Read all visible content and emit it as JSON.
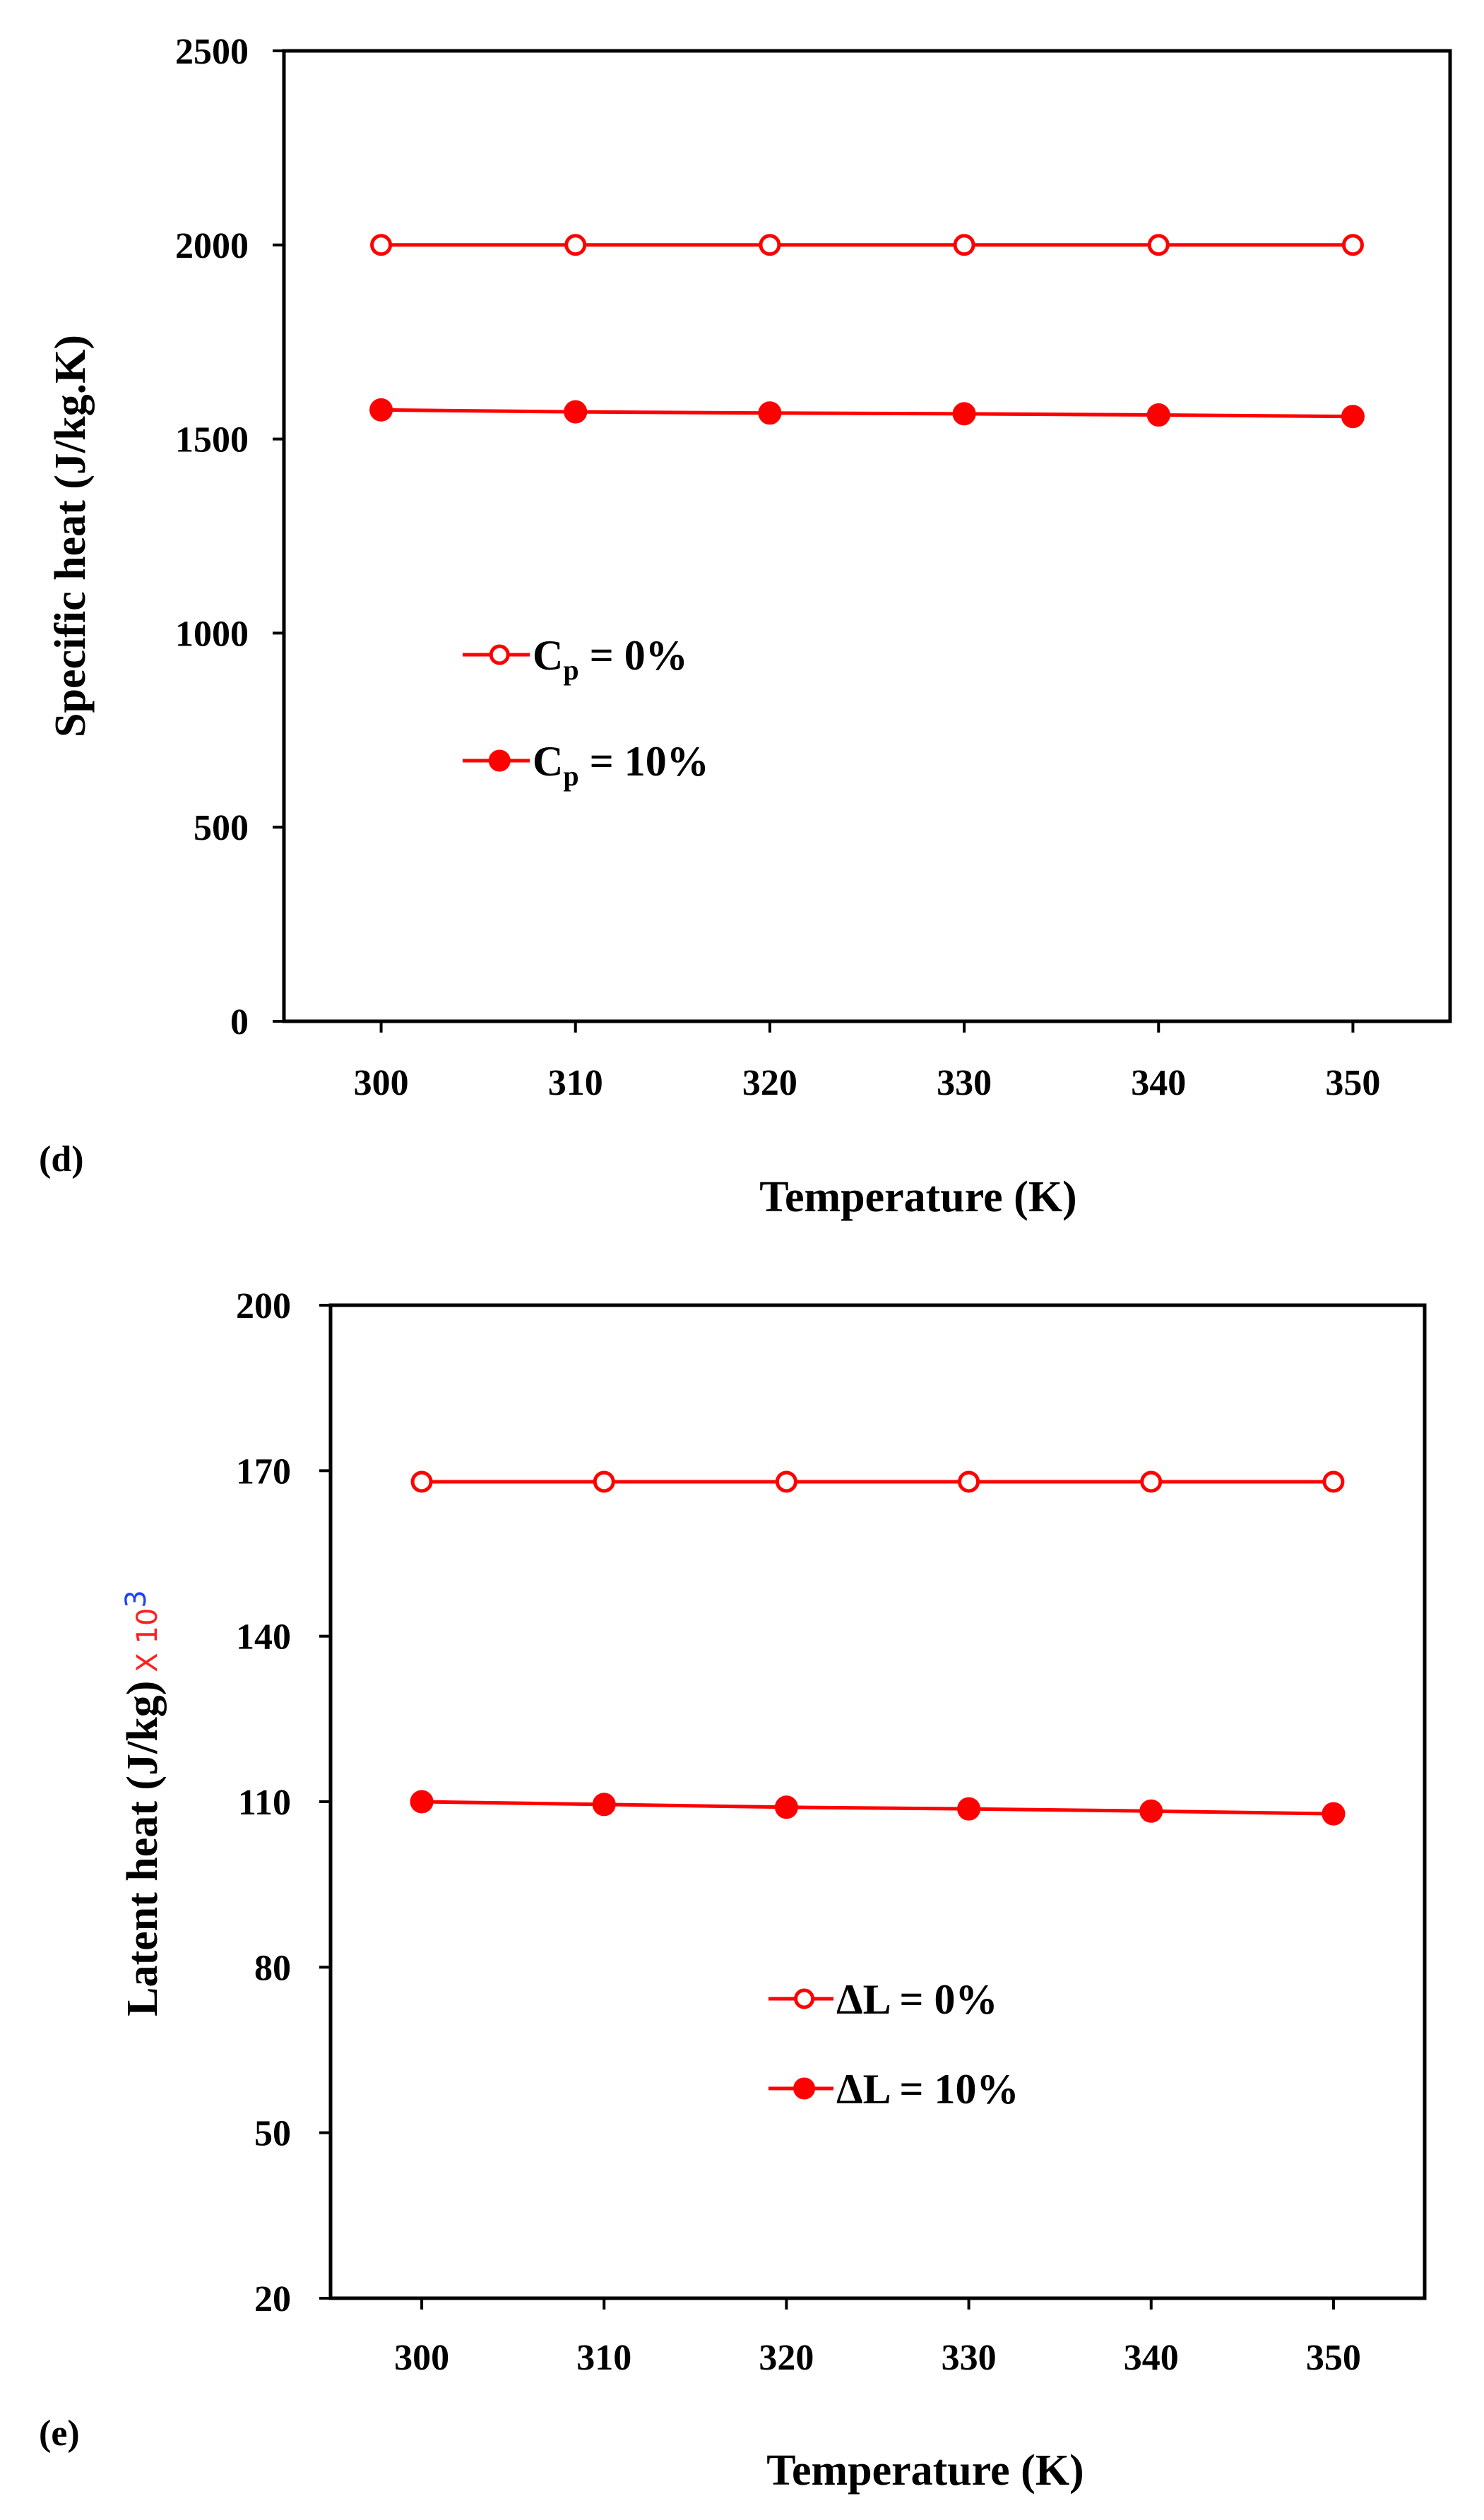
{
  "colors": {
    "series": "#ff0000",
    "axis": "#000000",
    "background": "#ffffff"
  },
  "chart_data": [
    {
      "type": "line",
      "panel_label": "(d)",
      "xlabel": "Temperature (K)",
      "ylabel": "Specific heat (J/kg.K)",
      "x": [
        300,
        310,
        320,
        330,
        340,
        350
      ],
      "xticks": [
        "300",
        "310",
        "320",
        "330",
        "340",
        "350"
      ],
      "xlim": [
        295,
        355
      ],
      "ylim": [
        0,
        2500
      ],
      "yticks": [
        "0",
        "500",
        "1000",
        "1500",
        "2000",
        "2500"
      ],
      "grid": false,
      "legend_position": "middle-left",
      "series": [
        {
          "name": "Cp = 0%",
          "legend_main": "C",
          "legend_sub": "p",
          "legend_rest": " = 0%",
          "marker": "open-circle",
          "values": [
            2000,
            2000,
            2000,
            2000,
            2000,
            2000
          ]
        },
        {
          "name": "Cp = 10%",
          "legend_main": "C",
          "legend_sub": "p",
          "legend_rest": " = 10%",
          "marker": "filled-circle",
          "values": [
            1575,
            1570,
            1567,
            1565,
            1562,
            1558
          ]
        }
      ]
    },
    {
      "type": "line",
      "panel_label": "(e)",
      "xlabel": "Temperature (K)",
      "ylabel": "Latent heat (J/kg)",
      "ylabel_suffix": "X 10",
      "ylabel_suffix_exp": "3",
      "x": [
        300,
        310,
        320,
        330,
        340,
        350
      ],
      "xticks": [
        "300",
        "310",
        "320",
        "330",
        "340",
        "350"
      ],
      "xlim": [
        295,
        355
      ],
      "ylim": [
        20,
        200
      ],
      "yticks": [
        "20",
        "50",
        "80",
        "110",
        "140",
        "170",
        "200"
      ],
      "grid": false,
      "legend_position": "lower-middle",
      "series": [
        {
          "name": "ΔL = 0%",
          "legend_main": "ΔL = 0%",
          "legend_sub": "",
          "legend_rest": "",
          "marker": "open-circle",
          "values": [
            168,
            168,
            168,
            168,
            168,
            168
          ]
        },
        {
          "name": "ΔL = 10%",
          "legend_main": "ΔL = 10%",
          "legend_sub": "",
          "legend_rest": "",
          "marker": "filled-circle",
          "values": [
            110,
            109.5,
            109,
            108.7,
            108.3,
            107.8
          ]
        }
      ]
    }
  ]
}
